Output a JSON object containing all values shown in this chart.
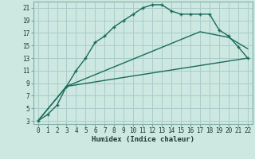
{
  "xlabel": "Humidex (Indice chaleur)",
  "ylabel": "",
  "bg_color": "#cce8e0",
  "grid_color": "#aacccc",
  "line_color": "#1a6b5a",
  "xlim": [
    -0.5,
    22.5
  ],
  "ylim": [
    2.5,
    22
  ],
  "xticks": [
    0,
    1,
    2,
    3,
    4,
    5,
    6,
    7,
    8,
    9,
    10,
    11,
    12,
    13,
    14,
    15,
    16,
    17,
    18,
    19,
    20,
    21,
    22
  ],
  "yticks": [
    3,
    5,
    7,
    9,
    11,
    13,
    15,
    17,
    19,
    21
  ],
  "line1_x": [
    0,
    1,
    2,
    3,
    4,
    5,
    6,
    7,
    8,
    9,
    10,
    11,
    12,
    13,
    14,
    15,
    16,
    17,
    18,
    19,
    20,
    21,
    22
  ],
  "line1_y": [
    3,
    4,
    5.5,
    8.5,
    11,
    13,
    15.5,
    16.5,
    18,
    19,
    20,
    21,
    21.5,
    21.5,
    20.5,
    20,
    20,
    20,
    20,
    17.5,
    16.5,
    14.8,
    13
  ],
  "line2_x": [
    0,
    3,
    22
  ],
  "line2_y": [
    3,
    8.5,
    13
  ],
  "line3_x": [
    0,
    3,
    17,
    20,
    22
  ],
  "line3_y": [
    3,
    8.5,
    17.2,
    16.3,
    14.5
  ]
}
